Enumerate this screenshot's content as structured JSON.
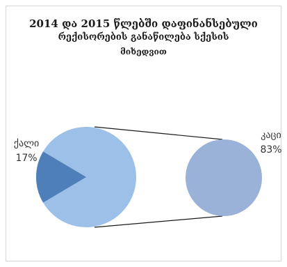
{
  "title_lines": [
    "2014 და 2015 წლებში დაფინანსებული",
    "რექისორების განაწილება სქესის",
    "მიხედვით"
  ],
  "chart_data": {
    "type": "pie",
    "subtype": "pie-of-pie",
    "title": "2014 და 2015 წლებში დაფინანსებული რექისორების განაწილება სქესის მიხედვით",
    "categories": [
      "ქალი",
      "კაცი"
    ],
    "values": [
      17,
      83
    ],
    "value_labels": [
      "17%",
      "83%"
    ],
    "colors": [
      "#4f7fb8",
      "#9ab1d8"
    ],
    "main_pie_color": "#9cc0e8",
    "legend": "none"
  }
}
